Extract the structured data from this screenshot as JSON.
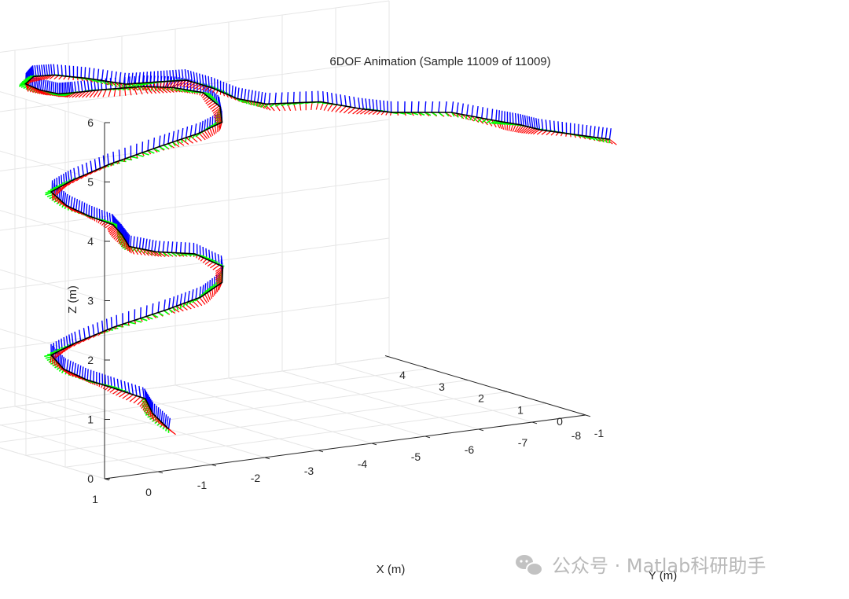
{
  "watermark": {
    "text": "公众号 · Matlab科研助手",
    "icon": "wechat-icon"
  },
  "chart_data": {
    "type": "line",
    "projection": "3d",
    "title": "6DOF Animation (Sample 11009 of 11009)",
    "xlabel": "X (m)",
    "ylabel": "Y (m)",
    "zlabel": "Z (m)",
    "xlim": [
      -8,
      1
    ],
    "ylim": [
      -1,
      4
    ],
    "zlim": [
      0,
      6
    ],
    "x_ticks": [
      "1",
      "0",
      "-1",
      "-2",
      "-3",
      "-4",
      "-5",
      "-6",
      "-7",
      "-8"
    ],
    "y_ticks": [
      "-1",
      "0",
      "1",
      "2",
      "3",
      "4"
    ],
    "z_ticks": [
      "0",
      "1",
      "2",
      "3",
      "4",
      "5",
      "6"
    ],
    "grid": true,
    "legend": "none",
    "colors": {
      "path": "#000000",
      "x_axis": "#ff0000",
      "y_axis": "#00ff00",
      "z_axis": "#0000ff"
    },
    "series": [
      {
        "x": [
          -2.0,
          -1.7,
          -1.6,
          -1.0,
          -0.5,
          -0.15,
          0.05,
          -0.4,
          -1.1,
          -2.0,
          -2.6,
          -3.0,
          -3.05,
          -2.6,
          -1.8,
          -1.3,
          -1.2,
          -1.0,
          -0.55,
          -0.2,
          0.05,
          -0.35,
          -1.0,
          -1.9,
          -2.6,
          -3.0,
          -3.0,
          -2.75,
          -2.2,
          -1.6,
          -0.8,
          -0.3,
          -0.05,
          0.15,
          0.2,
          -0.1,
          -0.55,
          -1.1,
          -1.6,
          -2.0,
          -2.3,
          -2.55,
          -2.8,
          -3.2,
          -4.0,
          -4.6,
          -5.1,
          -6.0,
          -6.6,
          -7.0,
          -7.3,
          -7.8,
          -8.3
        ],
        "y": [
          1.45,
          1.45,
          1.5,
          1.5,
          1.5,
          1.6,
          1.65,
          1.65,
          1.6,
          1.5,
          1.45,
          1.45,
          1.5,
          1.6,
          1.5,
          1.5,
          1.55,
          1.5,
          1.5,
          1.6,
          1.65,
          1.65,
          1.6,
          1.55,
          1.5,
          1.45,
          1.5,
          1.6,
          1.6,
          1.55,
          1.5,
          1.55,
          1.6,
          1.8,
          2.1,
          2.3,
          2.4,
          2.3,
          2.0,
          1.7,
          1.4,
          1.1,
          0.8,
          0.6,
          0.3,
          0.1,
          0.0,
          -0.3,
          -0.6,
          -0.7,
          -0.8,
          -1.0,
          -1.2
        ],
        "z": [
          0.0,
          0.3,
          0.55,
          0.8,
          1.0,
          1.2,
          1.45,
          1.6,
          1.8,
          2.0,
          2.15,
          2.35,
          2.6,
          2.85,
          3.0,
          3.15,
          3.35,
          3.55,
          3.75,
          3.95,
          4.2,
          4.35,
          4.55,
          4.75,
          4.9,
          5.05,
          5.3,
          5.55,
          5.7,
          5.8,
          5.85,
          5.85,
          5.85,
          5.9,
          5.95,
          6.0,
          5.95,
          5.85,
          5.75,
          5.8,
          5.85,
          5.75,
          5.6,
          5.5,
          5.5,
          5.35,
          5.25,
          5.2,
          5.05,
          4.95,
          4.85,
          4.75,
          4.65
        ]
      }
    ]
  }
}
